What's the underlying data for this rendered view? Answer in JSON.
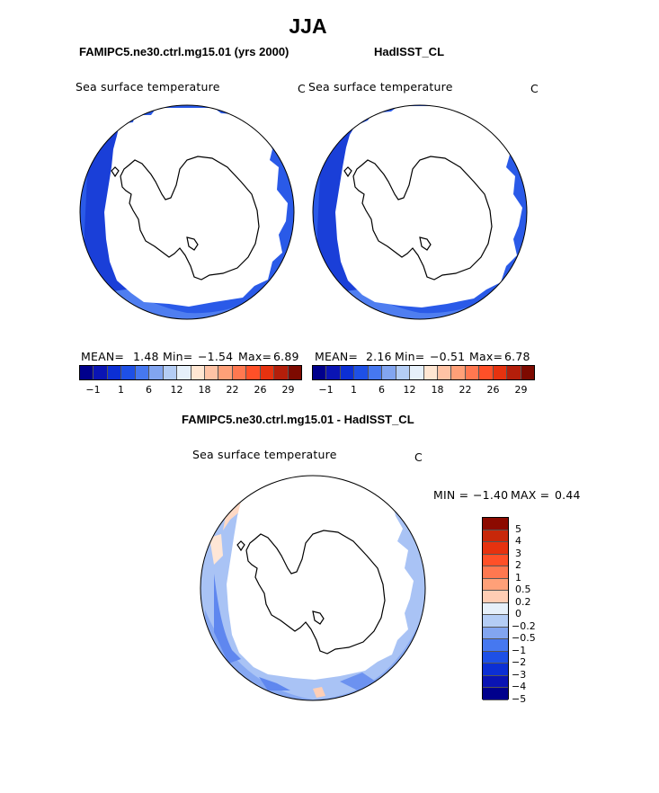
{
  "title": "JJA",
  "panel1": {
    "case_label": "FAMIPC5.ne30.ctrl.mg15.01 (yrs 2000)",
    "variable": "Sea surface temperature",
    "units": "C",
    "mean_label": "MEAN=",
    "mean_value": "1.48",
    "min_label": "Min=",
    "min_value": "−1.54",
    "max_label": "Max=",
    "max_value": "6.89"
  },
  "panel2": {
    "case_label": "HadISST_CL",
    "variable": "Sea surface temperature",
    "units": "C",
    "mean_label": "MEAN=",
    "mean_value": "2.16",
    "min_label": "Min=",
    "min_value": "−0.51",
    "max_label": "Max=",
    "max_value": "6.78"
  },
  "panel3": {
    "case_label": "FAMIPC5.ne30.ctrl.mg15.01 - HadISST_CL",
    "variable": "Sea surface temperature",
    "units": "C",
    "min_label": "MIN =",
    "min_value": "−1.40",
    "max_label": "MAX =",
    "max_value": "0.44"
  },
  "horizontal_colorbar": {
    "colors": [
      "#00008c",
      "#0a14b4",
      "#0c2fd4",
      "#1e50e6",
      "#4678f0",
      "#82a5f0",
      "#b4cdf5",
      "#e6f0fa",
      "#ffe6d2",
      "#ffc3a5",
      "#ffa078",
      "#ff7850",
      "#ff5028",
      "#e6320f",
      "#b41e0a",
      "#7d0a00"
    ],
    "tick_labels": [
      "−1",
      "1",
      "6",
      "12",
      "18",
      "22",
      "26",
      "29"
    ]
  },
  "vertical_colorbar": {
    "colors": [
      "#8c0a00",
      "#c8280a",
      "#e6320f",
      "#ff5028",
      "#ff7850",
      "#ffa078",
      "#ffcdb4",
      "#e6f0fa",
      "#b4cdf5",
      "#82a5f0",
      "#4678f0",
      "#1e50e6",
      "#0c2fd4",
      "#0a14b4",
      "#00008c"
    ],
    "tick_labels": [
      "5",
      "4",
      "3",
      "2",
      "1",
      "0.5",
      "0.2",
      "0",
      "−0.2",
      "−0.5",
      "−1",
      "−2",
      "−3",
      "−4",
      "−5"
    ]
  }
}
